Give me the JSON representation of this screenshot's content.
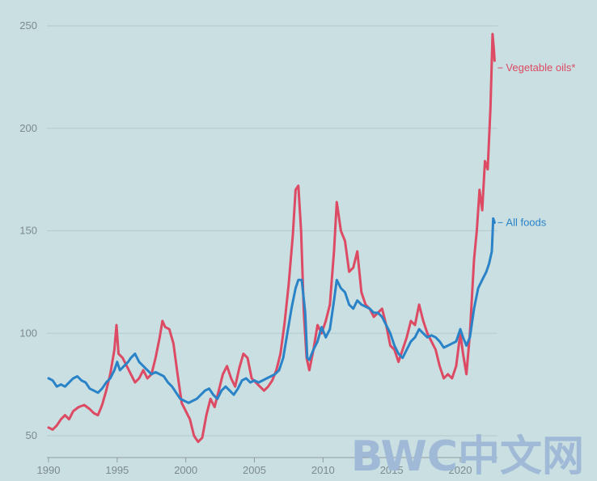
{
  "colors": {
    "background": "#c9dfe2",
    "grid": "#b3cbcf",
    "axis": "#8e9ca2",
    "vegetable_oils": "#dd4a63",
    "all_foods": "#2a82c7",
    "watermark": "#9fb9d6"
  },
  "watermark": {
    "text": "BWC中文网"
  },
  "chart_data": {
    "type": "line",
    "title": "",
    "xlabel": "",
    "ylabel": "",
    "xlim": [
      1990,
      2022.8
    ],
    "ylim": [
      42,
      258
    ],
    "yticks": [
      50,
      100,
      150,
      200,
      250
    ],
    "xticks": [
      1990,
      1995,
      2000,
      2005,
      2010,
      2015,
      2020
    ],
    "grid": "horizontal",
    "legend": "end-of-line labels",
    "series": [
      {
        "name": "Vegetable oils*",
        "color_key": "vegetable_oils",
        "points": [
          [
            1990.0,
            54
          ],
          [
            1990.3,
            53
          ],
          [
            1990.6,
            55
          ],
          [
            1990.9,
            58
          ],
          [
            1991.2,
            60
          ],
          [
            1991.5,
            58
          ],
          [
            1991.8,
            62
          ],
          [
            1992.2,
            64
          ],
          [
            1992.6,
            65
          ],
          [
            1993.0,
            63
          ],
          [
            1993.3,
            61
          ],
          [
            1993.6,
            60
          ],
          [
            1993.9,
            65
          ],
          [
            1994.2,
            72
          ],
          [
            1994.5,
            80
          ],
          [
            1994.8,
            92
          ],
          [
            1994.95,
            104
          ],
          [
            1995.1,
            90
          ],
          [
            1995.4,
            88
          ],
          [
            1995.7,
            84
          ],
          [
            1996.0,
            80
          ],
          [
            1996.3,
            76
          ],
          [
            1996.6,
            78
          ],
          [
            1996.9,
            82
          ],
          [
            1997.2,
            78
          ],
          [
            1997.5,
            80
          ],
          [
            1997.8,
            88
          ],
          [
            1998.1,
            98
          ],
          [
            1998.3,
            106
          ],
          [
            1998.5,
            103
          ],
          [
            1998.8,
            102
          ],
          [
            1999.1,
            95
          ],
          [
            1999.4,
            80
          ],
          [
            1999.7,
            66
          ],
          [
            2000.0,
            62
          ],
          [
            2000.3,
            58
          ],
          [
            2000.6,
            50
          ],
          [
            2000.9,
            47
          ],
          [
            2001.2,
            49
          ],
          [
            2001.5,
            60
          ],
          [
            2001.8,
            68
          ],
          [
            2002.1,
            64
          ],
          [
            2002.4,
            72
          ],
          [
            2002.7,
            80
          ],
          [
            2003.0,
            84
          ],
          [
            2003.3,
            78
          ],
          [
            2003.6,
            74
          ],
          [
            2003.9,
            83
          ],
          [
            2004.2,
            90
          ],
          [
            2004.5,
            88
          ],
          [
            2004.8,
            78
          ],
          [
            2005.1,
            76
          ],
          [
            2005.4,
            74
          ],
          [
            2005.7,
            72
          ],
          [
            2006.0,
            74
          ],
          [
            2006.3,
            77
          ],
          [
            2006.6,
            82
          ],
          [
            2006.9,
            90
          ],
          [
            2007.2,
            105
          ],
          [
            2007.5,
            124
          ],
          [
            2007.8,
            148
          ],
          [
            2008.0,
            170
          ],
          [
            2008.2,
            172
          ],
          [
            2008.4,
            150
          ],
          [
            2008.6,
            110
          ],
          [
            2008.8,
            88
          ],
          [
            2009.0,
            82
          ],
          [
            2009.3,
            92
          ],
          [
            2009.6,
            104
          ],
          [
            2009.9,
            100
          ],
          [
            2010.2,
            106
          ],
          [
            2010.5,
            114
          ],
          [
            2010.8,
            140
          ],
          [
            2011.0,
            164
          ],
          [
            2011.3,
            150
          ],
          [
            2011.6,
            145
          ],
          [
            2011.9,
            130
          ],
          [
            2012.2,
            132
          ],
          [
            2012.5,
            140
          ],
          [
            2012.8,
            120
          ],
          [
            2013.1,
            114
          ],
          [
            2013.4,
            112
          ],
          [
            2013.7,
            108
          ],
          [
            2014.0,
            110
          ],
          [
            2014.3,
            112
          ],
          [
            2014.6,
            104
          ],
          [
            2014.9,
            94
          ],
          [
            2015.2,
            92
          ],
          [
            2015.5,
            86
          ],
          [
            2015.8,
            92
          ],
          [
            2016.1,
            98
          ],
          [
            2016.4,
            106
          ],
          [
            2016.7,
            104
          ],
          [
            2017.0,
            114
          ],
          [
            2017.3,
            106
          ],
          [
            2017.6,
            100
          ],
          [
            2017.9,
            96
          ],
          [
            2018.2,
            92
          ],
          [
            2018.5,
            84
          ],
          [
            2018.8,
            78
          ],
          [
            2019.1,
            80
          ],
          [
            2019.4,
            78
          ],
          [
            2019.7,
            84
          ],
          [
            2020.0,
            100
          ],
          [
            2020.2,
            90
          ],
          [
            2020.45,
            80
          ],
          [
            2020.7,
            100
          ],
          [
            2021.0,
            136
          ],
          [
            2021.2,
            150
          ],
          [
            2021.4,
            170
          ],
          [
            2021.6,
            160
          ],
          [
            2021.8,
            184
          ],
          [
            2022.0,
            180
          ],
          [
            2022.2,
            210
          ],
          [
            2022.35,
            246
          ],
          [
            2022.45,
            238
          ],
          [
            2022.5,
            233
          ]
        ]
      },
      {
        "name": "All foods",
        "color_key": "all_foods",
        "points": [
          [
            1990.0,
            78
          ],
          [
            1990.3,
            77
          ],
          [
            1990.6,
            74
          ],
          [
            1990.9,
            75
          ],
          [
            1991.2,
            74
          ],
          [
            1991.5,
            76
          ],
          [
            1991.8,
            78
          ],
          [
            1992.1,
            79
          ],
          [
            1992.4,
            77
          ],
          [
            1992.7,
            76
          ],
          [
            1993.0,
            73
          ],
          [
            1993.3,
            72
          ],
          [
            1993.6,
            71
          ],
          [
            1993.9,
            73
          ],
          [
            1994.2,
            76
          ],
          [
            1994.5,
            78
          ],
          [
            1994.8,
            82
          ],
          [
            1995.0,
            86
          ],
          [
            1995.2,
            82
          ],
          [
            1995.5,
            84
          ],
          [
            1995.8,
            86
          ],
          [
            1996.0,
            88
          ],
          [
            1996.3,
            90
          ],
          [
            1996.6,
            86
          ],
          [
            1996.9,
            84
          ],
          [
            1997.2,
            82
          ],
          [
            1997.5,
            80
          ],
          [
            1997.8,
            81
          ],
          [
            1998.1,
            80
          ],
          [
            1998.4,
            79
          ],
          [
            1998.7,
            76
          ],
          [
            1999.0,
            74
          ],
          [
            1999.3,
            71
          ],
          [
            1999.6,
            68
          ],
          [
            1999.9,
            67
          ],
          [
            2000.2,
            66
          ],
          [
            2000.5,
            67
          ],
          [
            2000.8,
            68
          ],
          [
            2001.1,
            70
          ],
          [
            2001.4,
            72
          ],
          [
            2001.7,
            73
          ],
          [
            2002.0,
            70
          ],
          [
            2002.3,
            68
          ],
          [
            2002.6,
            72
          ],
          [
            2002.9,
            74
          ],
          [
            2003.2,
            72
          ],
          [
            2003.5,
            70
          ],
          [
            2003.8,
            73
          ],
          [
            2004.1,
            77
          ],
          [
            2004.4,
            78
          ],
          [
            2004.7,
            76
          ],
          [
            2005.0,
            77
          ],
          [
            2005.3,
            76
          ],
          [
            2005.6,
            77
          ],
          [
            2005.9,
            78
          ],
          [
            2006.2,
            79
          ],
          [
            2006.5,
            80
          ],
          [
            2006.8,
            82
          ],
          [
            2007.1,
            88
          ],
          [
            2007.4,
            100
          ],
          [
            2007.7,
            112
          ],
          [
            2008.0,
            122
          ],
          [
            2008.2,
            126
          ],
          [
            2008.45,
            126
          ],
          [
            2008.7,
            110
          ],
          [
            2008.85,
            88
          ],
          [
            2009.0,
            87
          ],
          [
            2009.3,
            92
          ],
          [
            2009.6,
            96
          ],
          [
            2009.9,
            103
          ],
          [
            2010.2,
            98
          ],
          [
            2010.5,
            102
          ],
          [
            2010.8,
            116
          ],
          [
            2011.0,
            126
          ],
          [
            2011.3,
            122
          ],
          [
            2011.6,
            120
          ],
          [
            2011.9,
            114
          ],
          [
            2012.2,
            112
          ],
          [
            2012.5,
            116
          ],
          [
            2012.8,
            114
          ],
          [
            2013.1,
            113
          ],
          [
            2013.4,
            112
          ],
          [
            2013.7,
            110
          ],
          [
            2014.0,
            110
          ],
          [
            2014.3,
            108
          ],
          [
            2014.6,
            104
          ],
          [
            2014.9,
            100
          ],
          [
            2015.2,
            94
          ],
          [
            2015.5,
            90
          ],
          [
            2015.8,
            88
          ],
          [
            2016.1,
            92
          ],
          [
            2016.4,
            96
          ],
          [
            2016.7,
            98
          ],
          [
            2017.0,
            102
          ],
          [
            2017.3,
            100
          ],
          [
            2017.6,
            98
          ],
          [
            2017.9,
            99
          ],
          [
            2018.2,
            98
          ],
          [
            2018.5,
            96
          ],
          [
            2018.8,
            93
          ],
          [
            2019.1,
            94
          ],
          [
            2019.4,
            95
          ],
          [
            2019.7,
            96
          ],
          [
            2020.0,
            102
          ],
          [
            2020.2,
            98
          ],
          [
            2020.45,
            94
          ],
          [
            2020.7,
            98
          ],
          [
            2021.0,
            112
          ],
          [
            2021.3,
            122
          ],
          [
            2021.6,
            126
          ],
          [
            2021.9,
            130
          ],
          [
            2022.1,
            134
          ],
          [
            2022.3,
            140
          ],
          [
            2022.4,
            156
          ],
          [
            2022.5,
            154
          ]
        ]
      }
    ]
  }
}
